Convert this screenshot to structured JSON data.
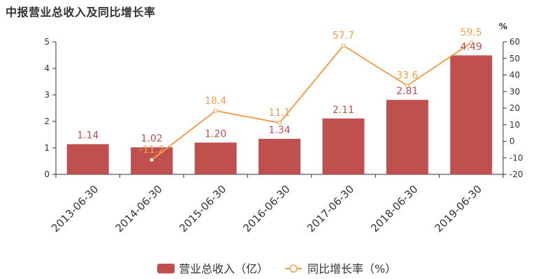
{
  "title": "中报营业总收入及同比增长率",
  "colors": {
    "bar": "#c0504d",
    "line": "#f0a050"
  },
  "chart_data": {
    "type": "bar",
    "categories": [
      "2013-06-30",
      "2014-06-30",
      "2015-06-30",
      "2016-06-30",
      "2017-06-30",
      "2018-06-30",
      "2019-06-30"
    ],
    "series": [
      {
        "name": "营业总收入（亿）",
        "type": "bar",
        "axis": "left",
        "values": [
          1.14,
          1.02,
          1.2,
          1.34,
          2.11,
          2.81,
          4.49
        ],
        "labels": [
          "1.14",
          "1.02",
          "1.20",
          "1.34",
          "2.11",
          "2.81",
          "4.49"
        ]
      },
      {
        "name": "同比增长率（%）",
        "type": "line",
        "axis": "right",
        "values": [
          null,
          -11.2,
          18.4,
          11.1,
          57.7,
          33.6,
          59.5
        ],
        "labels": [
          "",
          "-11.2",
          "18.4",
          "11.1",
          "57.7",
          "33.6",
          "59.5"
        ]
      }
    ],
    "ylim": [
      0,
      5
    ],
    "yticks": [
      0,
      1,
      2,
      3,
      4,
      5
    ],
    "y2lim": [
      -20,
      60
    ],
    "y2ticks": [
      -20,
      -10,
      0,
      10,
      20,
      30,
      40,
      50,
      60
    ],
    "y2unit": "%",
    "legend_position": "bottom",
    "grid": false
  }
}
